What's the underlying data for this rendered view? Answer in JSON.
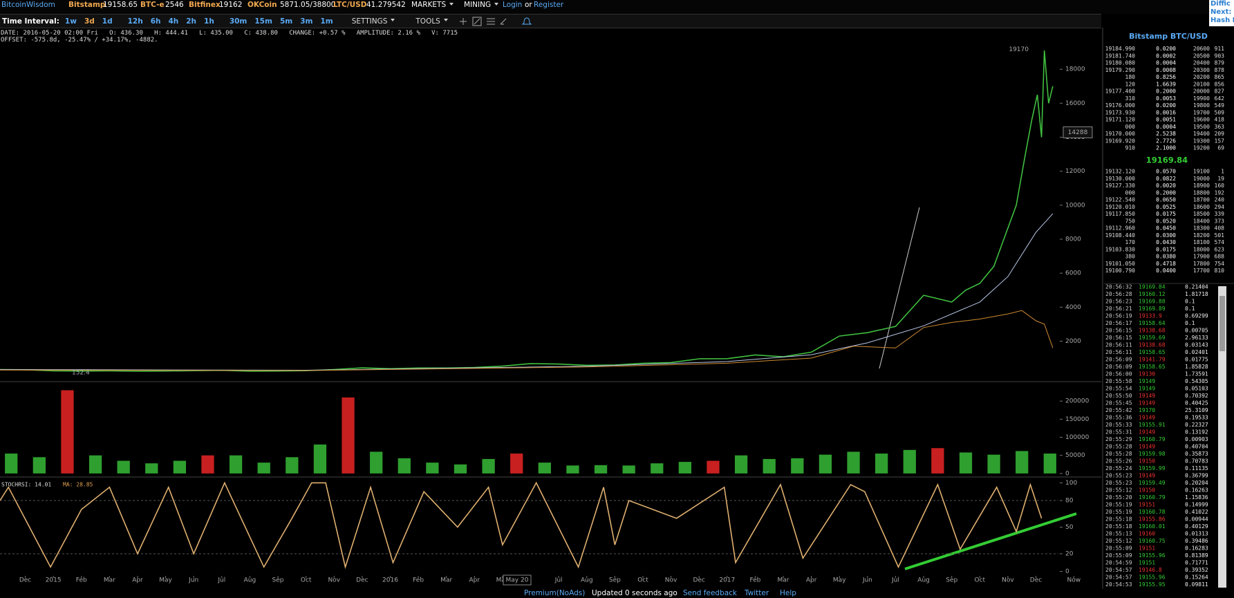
{
  "header": {
    "brand": "BitcoinWisdom",
    "tickers": [
      {
        "name": "Bitstamp",
        "price": "19158.65"
      },
      {
        "name": "BTC-e",
        "price": "2546"
      },
      {
        "name": "Bitfinex",
        "price": "19162"
      },
      {
        "name": "OKCoin",
        "price": "5871.05/38800"
      },
      {
        "name": "LTC/USD",
        "price": "41.279542"
      }
    ],
    "menus": [
      "MARKETS",
      "MINING"
    ],
    "login": "Login",
    "or": "or",
    "register": "Register",
    "side": [
      "Diffic",
      "Next:",
      "Hash R"
    ]
  },
  "toolbar": {
    "label": "Time Interval:",
    "intervals": [
      "1w",
      "3d",
      "1d",
      "12h",
      "6h",
      "4h",
      "2h",
      "1h",
      "30m",
      "15m",
      "5m",
      "3m",
      "1m"
    ],
    "selected": "3d",
    "menus": [
      "SETTINGS",
      "TOOLS"
    ]
  },
  "info": {
    "line1": "DATE: 2016-05-20 02:00 Fri   O: 436.30   H: 444.41   L: 435.00   C: 438.80   CHANGE: +0.57 %   AMPLITUDE: 2.16 %   V: 7715",
    "line2": "OFFSET: -575.8d, -25.47% / +34.17%, -4882."
  },
  "chart_data": [
    {
      "type": "line",
      "xlim": [
        -0.9,
        36.8
      ],
      "ylim": [
        -300,
        20000
      ],
      "yticks": [
        2000,
        4000,
        6000,
        8000,
        10000,
        12000,
        14000,
        16000,
        18000
      ],
      "xticks": [
        {
          "value": 0,
          "label": "Dec"
        },
        {
          "value": 1,
          "label": "2015"
        },
        {
          "value": 2,
          "label": "Feb"
        },
        {
          "value": 3,
          "label": "Mar"
        },
        {
          "value": 4,
          "label": "Apr"
        },
        {
          "value": 5,
          "label": "May"
        },
        {
          "value": 6,
          "label": "Jun"
        },
        {
          "value": 7,
          "label": "Jul"
        },
        {
          "value": 8,
          "label": "Aug"
        },
        {
          "value": 9,
          "label": "Sep"
        },
        {
          "value": 10,
          "label": "Oct"
        },
        {
          "value": 11,
          "label": "Nov"
        },
        {
          "value": 12,
          "label": "Dec"
        },
        {
          "value": 13,
          "label": "2016"
        },
        {
          "value": 14,
          "label": "Feb"
        },
        {
          "value": 15,
          "label": "Mar"
        },
        {
          "value": 16,
          "label": "Apr"
        },
        {
          "value": 17,
          "label": "May"
        },
        {
          "value": 19,
          "label": "Jul"
        },
        {
          "value": 20,
          "label": "Aug"
        },
        {
          "value": 21,
          "label": "Sep"
        },
        {
          "value": 22,
          "label": "Oct"
        },
        {
          "value": 23,
          "label": "Nov"
        },
        {
          "value": 24,
          "label": "Dec"
        },
        {
          "value": 25,
          "label": "2017"
        },
        {
          "value": 26,
          "label": "Feb"
        },
        {
          "value": 27,
          "label": "Mar"
        },
        {
          "value": 28,
          "label": "Apr"
        },
        {
          "value": 29,
          "label": "May"
        },
        {
          "value": 30,
          "label": "Jun"
        },
        {
          "value": 31,
          "label": "Jul"
        },
        {
          "value": 32,
          "label": "Aug"
        },
        {
          "value": 33,
          "label": "Sep"
        },
        {
          "value": 34,
          "label": "Oct"
        },
        {
          "value": 35,
          "label": "Nov"
        },
        {
          "value": 36,
          "label": "Dec"
        },
        {
          "value": 37.35,
          "label": "Now"
        }
      ],
      "series": [
        {
          "color": "#3fbf3f",
          "x": [
            -0.9,
            0,
            1,
            2,
            3,
            4,
            5,
            6,
            7,
            8,
            9,
            10,
            11,
            12,
            13,
            14,
            15,
            16,
            17,
            18,
            19,
            20,
            21,
            22,
            23,
            24,
            25,
            26,
            27,
            28,
            29,
            30,
            31,
            32,
            33,
            33.5,
            34,
            34.5,
            35,
            35.3,
            35.6,
            35.85,
            36.05,
            36.2,
            36.3,
            36.45,
            36.6
          ],
          "values": [
            330,
            320,
            250,
            240,
            250,
            230,
            240,
            260,
            280,
            230,
            240,
            260,
            330,
            430,
            380,
            420,
            420,
            450,
            530,
            680,
            650,
            580,
            600,
            700,
            740,
            960,
            970,
            1190,
            1080,
            1350,
            2300,
            2500,
            2870,
            4700,
            4300,
            5000,
            5400,
            6400,
            8650,
            10000,
            12800,
            15000,
            16500,
            14000,
            19100,
            16000,
            17000
          ]
        },
        {
          "color": "#b9c8e8",
          "x": [
            -0.9,
            10,
            20,
            25,
            28,
            30,
            32,
            34,
            35,
            36,
            36.6
          ],
          "values": [
            330,
            290,
            520,
            800,
            1200,
            1900,
            2900,
            4300,
            5800,
            8400,
            9500
          ]
        },
        {
          "color": "#d08a30",
          "x": [
            -0.9,
            10,
            20,
            25,
            28,
            29.5,
            31,
            32,
            33,
            34,
            35,
            35.5,
            36,
            36.3,
            36.6
          ],
          "values": [
            300,
            270,
            480,
            700,
            1000,
            1700,
            1600,
            2800,
            3100,
            3300,
            3600,
            3800,
            3200,
            3000,
            1600
          ]
        }
      ],
      "high": 19170,
      "low": 152.4,
      "crosshair": {
        "price": 14288,
        "date": "May 20"
      }
    },
    {
      "type": "bar",
      "xlim": [
        -0.9,
        36.8
      ],
      "ylim": [
        -6000,
        250000
      ],
      "yticks": [
        0,
        50000,
        100000,
        150000,
        200000
      ],
      "x": [
        -0.5,
        0.5,
        1.5,
        2.5,
        3.5,
        4.5,
        5.5,
        6.5,
        7.5,
        8.5,
        9.5,
        10.5,
        11.5,
        12.5,
        13.5,
        14.5,
        15.5,
        16.5,
        17.5,
        18.5,
        19.5,
        20.5,
        21.5,
        22.5,
        23.5,
        24.5,
        25.5,
        26.5,
        27.5,
        28.5,
        29.5,
        30.5,
        31.5,
        32.5,
        33.5,
        34.5,
        35.5,
        36.5
      ],
      "values": [
        55000,
        45000,
        230000,
        50000,
        35000,
        28000,
        35000,
        50000,
        50000,
        30000,
        45000,
        80000,
        210000,
        60000,
        42000,
        30000,
        25000,
        40000,
        55000,
        30000,
        22000,
        23000,
        22000,
        28000,
        32000,
        35000,
        50000,
        40000,
        42000,
        52000,
        60000,
        55000,
        65000,
        70000,
        58000,
        52000,
        62000,
        55000
      ],
      "colors": [
        "#2f9f2f",
        "#2f9f2f",
        "#c82020",
        "#2f9f2f",
        "#2f9f2f",
        "#2f9f2f",
        "#2f9f2f",
        "#c82020",
        "#2f9f2f",
        "#2f9f2f",
        "#2f9f2f",
        "#2f9f2f",
        "#c82020",
        "#2f9f2f",
        "#2f9f2f",
        "#2f9f2f",
        "#2f9f2f",
        "#2f9f2f",
        "#c82020",
        "#2f9f2f",
        "#2f9f2f",
        "#2f9f2f",
        "#2f9f2f",
        "#2f9f2f",
        "#2f9f2f",
        "#c82020",
        "#2f9f2f",
        "#2f9f2f",
        "#2f9f2f",
        "#2f9f2f",
        "#2f9f2f",
        "#2f9f2f",
        "#2f9f2f",
        "#c82020",
        "#2f9f2f",
        "#2f9f2f",
        "#2f9f2f",
        "#2f9f2f"
      ]
    },
    {
      "type": "line",
      "title": "STOCHRSI: 14.01",
      "subtitle": "MA: 28.85",
      "xlim": [
        -0.9,
        36.8
      ],
      "ylim": [
        -5,
        105
      ],
      "yticks": [
        0,
        20,
        50,
        80,
        100
      ],
      "grid_values": [
        20,
        80
      ],
      "series": [
        {
          "color": "#e0b070",
          "x": [
            -0.9,
            -0.6,
            0.9,
            2.0,
            3.0,
            4.0,
            5.1,
            6.0,
            7.1,
            8.5,
            9.5,
            10.2,
            10.7,
            11.4,
            12.3,
            13.1,
            14.2,
            15.4,
            16.5,
            17.0,
            18.2,
            19.7,
            20.6,
            21.0,
            21.5,
            23.2,
            24.9,
            25.3,
            26.9,
            27.7,
            29.4,
            29.9,
            31.1,
            32.5,
            33.3,
            34.6,
            35.3,
            35.8,
            36.2
          ],
          "values": [
            80,
            95,
            5,
            70,
            95,
            20,
            95,
            20,
            100,
            5,
            60,
            100,
            100,
            5,
            95,
            10,
            90,
            50,
            95,
            30,
            100,
            5,
            95,
            30,
            80,
            60,
            95,
            10,
            98,
            15,
            98,
            90,
            5,
            98,
            25,
            95,
            45,
            98,
            60
          ]
        }
      ]
    }
  ],
  "orderbook": {
    "title": "Bitstamp BTC/USD",
    "last": "19169.84",
    "asks": [
      [
        "19184.990",
        "0.0200",
        "20600",
        "911"
      ],
      [
        "19181.740",
        "0.0002",
        "20500",
        "903"
      ],
      [
        "19180.080",
        "0.0004",
        "20400",
        "879"
      ],
      [
        "19179.290",
        "0.0008",
        "20300",
        "878"
      ],
      [
        "180",
        "0.8256",
        "20200",
        "865"
      ],
      [
        "120",
        "1.6639",
        "20100",
        "856"
      ],
      [
        "19177.400",
        "0.2000",
        "20000",
        "827"
      ],
      [
        "310",
        "0.0053",
        "19900",
        "642"
      ],
      [
        "19176.000",
        "0.0200",
        "19800",
        "549"
      ],
      [
        "19173.930",
        "0.0016",
        "19700",
        "509"
      ],
      [
        "19171.120",
        "0.0051",
        "19600",
        "418"
      ],
      [
        "000",
        "0.0004",
        "19500",
        "363"
      ],
      [
        "19170.000",
        "2.5238",
        "19400",
        "209"
      ],
      [
        "19169.920",
        "2.7726",
        "19300",
        "157"
      ],
      [
        "910",
        "2.1000",
        "19200",
        "69"
      ]
    ],
    "bids": [
      [
        "19132.120",
        "0.0570",
        "19100",
        "1"
      ],
      [
        "19130.000",
        "0.0822",
        "19000",
        "19"
      ],
      [
        "19127.330",
        "0.0020",
        "18900",
        "160"
      ],
      [
        "000",
        "0.2000",
        "18800",
        "192"
      ],
      [
        "19122.540",
        "0.0650",
        "18700",
        "240"
      ],
      [
        "19120.010",
        "0.0525",
        "18600",
        "294"
      ],
      [
        "19117.850",
        "0.0175",
        "18500",
        "339"
      ],
      [
        "750",
        "0.0520",
        "18400",
        "373"
      ],
      [
        "19112.960",
        "0.0450",
        "18300",
        "408"
      ],
      [
        "19108.440",
        "0.0300",
        "18200",
        "501"
      ],
      [
        "170",
        "0.0430",
        "18100",
        "574"
      ],
      [
        "19103.830",
        "0.0175",
        "18000",
        "623"
      ],
      [
        "380",
        "0.0380",
        "17900",
        "688"
      ],
      [
        "19101.050",
        "0.4718",
        "17800",
        "754"
      ],
      [
        "19100.790",
        "0.0400",
        "17700",
        "810"
      ]
    ]
  },
  "trades": [
    [
      "20:56:32",
      "19169.84",
      "0.21404",
      "#3c3"
    ],
    [
      "20:56:28",
      "19160.12",
      "1.81718",
      "#3c3"
    ],
    [
      "20:56:23",
      "19169.88",
      "0.1",
      "#3c3"
    ],
    [
      "20:56:21",
      "19169.89",
      "0.1",
      "#3c3"
    ],
    [
      "20:56:19",
      "19133.9",
      "0.69299",
      "#e33"
    ],
    [
      "20:56:17",
      "19158.64",
      "0.1",
      "#3c3"
    ],
    [
      "20:56:15",
      "19138.68",
      "0.00705",
      "#e33"
    ],
    [
      "20:56:15",
      "19159.69",
      "2.96133",
      "#3c3"
    ],
    [
      "20:56:11",
      "19138.68",
      "0.03143",
      "#e33"
    ],
    [
      "20:56:11",
      "19158.65",
      "0.02401",
      "#3c3"
    ],
    [
      "20:56:09",
      "19141.79",
      "0.01775",
      "#e33"
    ],
    [
      "20:56:09",
      "19158.65",
      "1.85828",
      "#3c3"
    ],
    [
      "20:56:00",
      "19130",
      "1.73591",
      "#e33"
    ],
    [
      "20:55:58",
      "19149",
      "0.54305",
      "#3c3"
    ],
    [
      "20:55:54",
      "19149",
      "0.05103",
      "#3c3"
    ],
    [
      "20:55:50",
      "19149",
      "0.70392",
      "#e33"
    ],
    [
      "20:55:45",
      "19149",
      "0.40425",
      "#e33"
    ],
    [
      "20:55:42",
      "19170",
      "25.3109",
      "#3c3"
    ],
    [
      "20:55:36",
      "19149",
      "0.19533",
      "#e33"
    ],
    [
      "20:55:33",
      "19155.91",
      "0.22327",
      "#3c3"
    ],
    [
      "20:55:31",
      "19149",
      "0.13192",
      "#e33"
    ],
    [
      "20:55:29",
      "19160.79",
      "0.00903",
      "#3c3"
    ],
    [
      "20:55:28",
      "19149",
      "0.40704",
      "#e33"
    ],
    [
      "20:55:28",
      "19159.98",
      "0.35873",
      "#3c3"
    ],
    [
      "20:55:26",
      "19150",
      "0.70783",
      "#e33"
    ],
    [
      "20:55:24",
      "19159.99",
      "0.11135",
      "#3c3"
    ],
    [
      "20:55:23",
      "19149",
      "0.36799",
      "#e33"
    ],
    [
      "20:55:23",
      "19159.49",
      "0.20204",
      "#3c3"
    ],
    [
      "20:55:12",
      "19150",
      "0.16263",
      "#e33"
    ],
    [
      "20:55:20",
      "19160.79",
      "1.15836",
      "#3c3"
    ],
    [
      "20:55:19",
      "19151",
      "0.14999",
      "#e33"
    ],
    [
      "20:55:19",
      "19160.78",
      "0.41022",
      "#3c3"
    ],
    [
      "20:55:18",
      "19155.86",
      "0.00944",
      "#e33"
    ],
    [
      "20:55:18",
      "19160.01",
      "0.40129",
      "#3c3"
    ],
    [
      "20:55:13",
      "19160",
      "0.01313",
      "#e33"
    ],
    [
      "20:55:12",
      "19160.75",
      "0.39486",
      "#3c3"
    ],
    [
      "20:55:09",
      "19151",
      "0.16283",
      "#e33"
    ],
    [
      "20:55:09",
      "19155.96",
      "0.81389",
      "#3c3"
    ],
    [
      "20:54:59",
      "19151",
      "0.71771",
      "#3c3"
    ],
    [
      "20:54:57",
      "19146.8",
      "0.39352",
      "#e33"
    ],
    [
      "20:54:57",
      "19155.96",
      "0.15264",
      "#3c3"
    ],
    [
      "20:54:53",
      "19155.95",
      "0.09811",
      "#3c3"
    ]
  ],
  "footer": [
    "Premium(NoAds)",
    "Updated 0 seconds ago",
    "Send feedback",
    "Twitter",
    "Help"
  ]
}
